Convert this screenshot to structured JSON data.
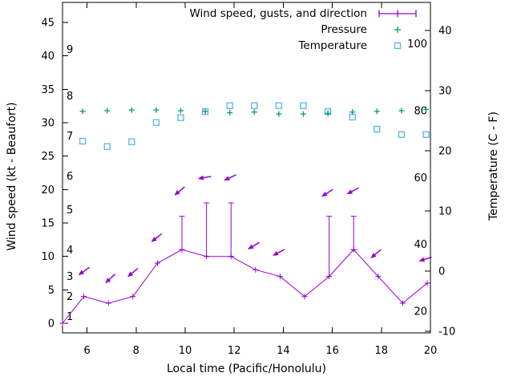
{
  "colors": {
    "wind": "#9400d3",
    "pressure": "#009e73",
    "temperature": "#56b4e9",
    "axis": "#000000",
    "background": "#ffffff"
  },
  "chart_data": {
    "type": "line",
    "xlabel": "Local time (Pacific/Honolulu)",
    "ylabel_left": "Wind speed (kt - Beaufort)",
    "ylabel_right": "Temperature (C - F)",
    "x_range": [
      5,
      20
    ],
    "x_ticks": [
      6,
      8,
      10,
      12,
      14,
      16,
      18,
      20
    ],
    "y_left_ticks_kt": [
      0,
      5,
      10,
      15,
      20,
      25,
      30,
      35,
      40,
      45
    ],
    "y_left_max_kt": 45,
    "beaufort_labels": [
      {
        "beaufort": "1",
        "kt": 1
      },
      {
        "beaufort": "2",
        "kt": 4
      },
      {
        "beaufort": "3",
        "kt": 7
      },
      {
        "beaufort": "4",
        "kt": 11
      },
      {
        "beaufort": "5",
        "kt": 17
      },
      {
        "beaufort": "6",
        "kt": 22
      },
      {
        "beaufort": "7",
        "kt": 28
      },
      {
        "beaufort": "8",
        "kt": 34
      },
      {
        "beaufort": "9",
        "kt": 41
      }
    ],
    "y_right_ticks_c": [
      -10,
      0,
      10,
      20,
      30,
      40
    ],
    "fahrenheit_labels": [
      "20",
      "40",
      "60",
      "80",
      "100"
    ],
    "legend": [
      {
        "label": "Wind speed, gusts, and direction",
        "marker": "errorbar-line",
        "color": "#9400d3"
      },
      {
        "label": "Pressure",
        "marker": "plus",
        "color": "#009e73"
      },
      {
        "label": "Temperature",
        "marker": "open-square",
        "color": "#56b4e9"
      }
    ],
    "series": [
      {
        "name": "wind_speed_and_gusts",
        "units": "kt",
        "color": "#9400d3",
        "points": [
          {
            "t": 5.0,
            "kt": 0,
            "gust": 0
          },
          {
            "t": 5.87,
            "kt": 4,
            "gust": 4
          },
          {
            "t": 6.87,
            "kt": 3,
            "gust": 3
          },
          {
            "t": 7.87,
            "kt": 4,
            "gust": 4
          },
          {
            "t": 8.87,
            "kt": 9,
            "gust": 9
          },
          {
            "t": 9.87,
            "kt": 11,
            "gust": 16
          },
          {
            "t": 10.87,
            "kt": 10,
            "gust": 18
          },
          {
            "t": 11.87,
            "kt": 10,
            "gust": 18
          },
          {
            "t": 12.87,
            "kt": 8,
            "gust": 8
          },
          {
            "t": 13.87,
            "kt": 7,
            "gust": 7
          },
          {
            "t": 14.87,
            "kt": 4,
            "gust": 4
          },
          {
            "t": 15.87,
            "kt": 7,
            "gust": 16
          },
          {
            "t": 16.87,
            "kt": 11,
            "gust": 16
          },
          {
            "t": 17.87,
            "kt": 7,
            "gust": 7
          },
          {
            "t": 18.87,
            "kt": 3,
            "gust": 3
          },
          {
            "t": 19.87,
            "kt": 6,
            "gust": 6
          }
        ]
      },
      {
        "name": "pressure",
        "units": "left-axis plot units (pressure scale not labeled)",
        "color": "#009e73",
        "x": [
          5.82,
          6.82,
          7.82,
          8.82,
          9.82,
          10.82,
          11.82,
          12.82,
          13.82,
          14.82,
          15.82,
          16.82,
          17.82,
          18.82,
          19.82
        ],
        "y_plot": [
          31.7,
          31.8,
          31.9,
          31.9,
          31.8,
          31.7,
          31.5,
          31.6,
          31.3,
          31.3,
          31.4,
          31.6,
          31.7,
          31.8,
          32.0
        ]
      },
      {
        "name": "temperature",
        "units": "C",
        "color": "#56b4e9",
        "x": [
          5.82,
          6.82,
          7.82,
          8.82,
          9.82,
          10.82,
          11.82,
          12.82,
          13.82,
          14.82,
          15.82,
          16.82,
          17.82,
          18.82,
          19.82
        ],
        "c": [
          21.6,
          20.7,
          21.5,
          24.7,
          25.5,
          26.5,
          27.5,
          27.5,
          27.5,
          27.5,
          26.5,
          25.6,
          23.6,
          22.7,
          22.7
        ]
      }
    ],
    "wind_arrows": [
      {
        "t": 5.88,
        "kt": 7.8,
        "angle_deg": 145
      },
      {
        "t": 6.95,
        "kt": 6.7,
        "angle_deg": 137
      },
      {
        "t": 7.87,
        "kt": 7.6,
        "angle_deg": 140
      },
      {
        "t": 8.84,
        "kt": 12.8,
        "angle_deg": 142
      },
      {
        "t": 9.78,
        "kt": 19.8,
        "angle_deg": 140
      },
      {
        "t": 10.8,
        "kt": 21.8,
        "angle_deg": 170
      },
      {
        "t": 11.84,
        "kt": 21.8,
        "angle_deg": 155
      },
      {
        "t": 12.8,
        "kt": 11.6,
        "angle_deg": 150
      },
      {
        "t": 13.82,
        "kt": 10.6,
        "angle_deg": 152
      },
      {
        "t": 15.8,
        "kt": 19.5,
        "angle_deg": 148
      },
      {
        "t": 16.84,
        "kt": 19.8,
        "angle_deg": 152
      },
      {
        "t": 17.78,
        "kt": 10.4,
        "angle_deg": 140
      },
      {
        "t": 19.8,
        "kt": 9.6,
        "angle_deg": 163
      }
    ]
  }
}
